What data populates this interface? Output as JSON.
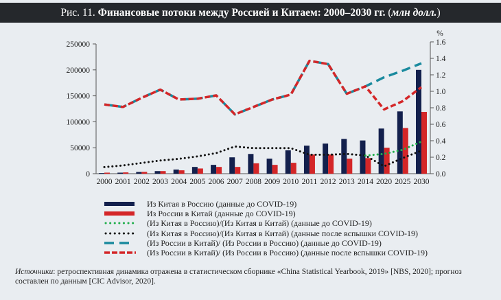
{
  "header": {
    "prefix": "Рис. 11.",
    "title": "Финансовые потоки между Россией и Китаем: 2000–2030 гг.",
    "units_open": "(",
    "units": "млн долл.",
    "units_close": ")"
  },
  "chart_data": {
    "type": "bar",
    "title": "Финансовые потоки между Россией и Китаем: 2000–2030 гг. (млн долл.)",
    "categories": [
      "2000",
      "2001",
      "2002",
      "2003",
      "2004",
      "2005",
      "2006",
      "2007",
      "2008",
      "2009",
      "2010",
      "2011",
      "2012",
      "2013",
      "2014",
      "2020",
      "2025",
      "2030"
    ],
    "left_axis": {
      "ylim": [
        0,
        250000
      ],
      "ticks": [
        "0",
        "50000",
        "100000",
        "150000",
        "200000",
        "250000"
      ],
      "label": ""
    },
    "right_axis": {
      "ylim": [
        0,
        1.6
      ],
      "ticks": [
        "0.0",
        "0.2",
        "0.4",
        "0.6",
        "0.8",
        "1.0",
        "1.2",
        "1.4",
        "1.6"
      ],
      "label": "%"
    },
    "grid": false,
    "legend_position": "bottom",
    "series": [
      {
        "name": "Из Китая в Россию (данные до COVID-19)",
        "type": "bar",
        "axis": "left",
        "color": "#13204d",
        "values": [
          1200,
          2000,
          3300,
          5000,
          8000,
          13000,
          17000,
          31500,
          38000,
          29000,
          45000,
          54000,
          58000,
          67000,
          64000,
          87000,
          120000,
          200000
        ]
      },
      {
        "name": "Из России в Китай (данные до COVID-19)",
        "type": "bar",
        "axis": "left",
        "color": "#d42628",
        "values": [
          2000,
          2500,
          3500,
          5000,
          6500,
          10000,
          13000,
          13000,
          20000,
          17000,
          21000,
          37000,
          37000,
          29000,
          30000,
          50000,
          88000,
          119000
        ]
      },
      {
        "name": "(Из Китая в Россию)/(Из Китая в Китай) (данные до COVID-19)",
        "type": "line",
        "style": "dotted",
        "axis": "right",
        "color": "#1fae4b",
        "values": [
          null,
          null,
          null,
          null,
          null,
          null,
          null,
          null,
          null,
          null,
          null,
          null,
          null,
          null,
          0.22,
          0.24,
          0.29,
          0.39
        ]
      },
      {
        "name": "(Из Китая в Россию)/(Из Китая в Китай) (данные после вспышки COVID-19)",
        "type": "line",
        "style": "dotted",
        "axis": "right",
        "color": "#111111",
        "values": [
          0.08,
          0.1,
          0.13,
          0.16,
          0.18,
          0.21,
          0.25,
          0.33,
          0.31,
          0.31,
          0.31,
          0.23,
          0.23,
          0.24,
          0.22,
          0.09,
          0.19,
          0.28
        ]
      },
      {
        "name": "(Из России в Китай)/ (Из России в Россию) (данные до COVID-19)",
        "type": "line",
        "style": "dashed",
        "axis": "right",
        "color": "#1a8a9e",
        "values": [
          0.84,
          0.81,
          0.92,
          1.02,
          0.9,
          0.91,
          0.95,
          0.72,
          0.81,
          0.9,
          0.96,
          1.37,
          1.33,
          0.97,
          1.06,
          1.17,
          1.25,
          1.34
        ]
      },
      {
        "name": "(Из России в Китай)/ (Из России в Россию) (данные после вспышки COVID-19)",
        "type": "line",
        "style": "dashed",
        "axis": "right",
        "color": "#d42628",
        "values": [
          0.84,
          0.81,
          0.92,
          1.02,
          0.9,
          0.91,
          0.95,
          0.72,
          0.81,
          0.9,
          0.96,
          1.37,
          1.33,
          0.97,
          1.06,
          0.78,
          0.88,
          1.05
        ]
      }
    ]
  },
  "legend": [
    {
      "label": "Из Китая в Россию (данные до COVID-19)"
    },
    {
      "label": "Из России в Китай (данные до COVID-19)"
    },
    {
      "label": "(Из Китая в Россию)/(Из Китая в Китай) (данные до COVID-19)"
    },
    {
      "label": "(Из Китая в Россию)/(Из Китая в Китай) (данные после вспышки COVID-19)"
    },
    {
      "label": "(Из России в Китай)/ (Из России в Россию) (данные до COVID-19)"
    },
    {
      "label": "(Из России в Китай)/ (Из России в Россию) (данные после вспышки COVID-19)"
    }
  ],
  "source": {
    "label": "Источники",
    "text": ": ретроспективная динамика отражена в статистическом сборнике «China Statistical Yearbook, 2019» [NBS, 2020]; прогноз составлен по данным [CIC Advisor, 2020]."
  }
}
